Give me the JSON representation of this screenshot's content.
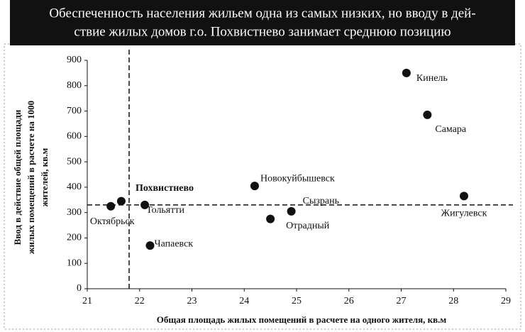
{
  "chart_data": {
    "type": "scatter",
    "title": [
      "Обеспеченность населения жильем одна из самых низких, но вводу в дей-",
      "ствие жилых домов г.о. Похвистнево занимает среднюю позицию"
    ],
    "xlabel": "Общая площадь жилых помещений в расчете на одного жителя, кв.м",
    "ylabel": [
      "Ввод в действие общей площади",
      "жилых помещений в расчете на 1000",
      "жителей, кв.м"
    ],
    "labels": [
      "Октябрьск",
      "Похвистнево",
      "Тольятти",
      "Чапаевск",
      "Новокуйбышевск",
      "Отрадный",
      "Сызрань",
      "Кинель",
      "Самара",
      "Жигулевск"
    ],
    "x": [
      21.45,
      21.65,
      22.1,
      22.2,
      24.2,
      24.5,
      24.9,
      27.1,
      27.5,
      28.2
    ],
    "values": [
      325,
      345,
      330,
      170,
      405,
      275,
      305,
      850,
      685,
      365
    ],
    "color": "#111111",
    "xlim": [
      21,
      29
    ],
    "xticks": [
      21,
      22,
      23,
      24,
      25,
      26,
      27,
      28,
      29
    ],
    "ylim": [
      0,
      900
    ],
    "yticks": [
      0,
      100,
      200,
      300,
      400,
      500,
      600,
      700,
      800,
      900
    ],
    "vlines": [
      21.8
    ],
    "hlines": [
      330
    ]
  }
}
